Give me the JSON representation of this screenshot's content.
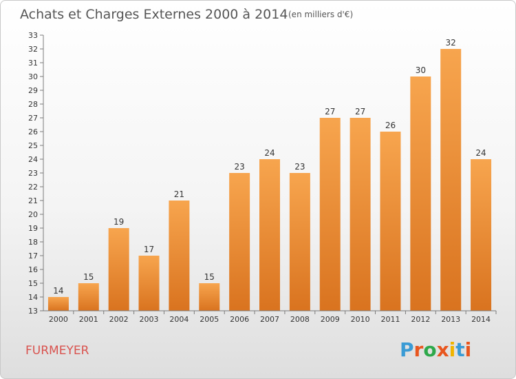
{
  "chart_data": {
    "type": "bar",
    "title": "Achats et Charges Externes 2000 à 2014",
    "subtitle": "(en milliers d'€)",
    "categories": [
      "2000",
      "2001",
      "2002",
      "2003",
      "2004",
      "2005",
      "2006",
      "2007",
      "2008",
      "2009",
      "2010",
      "2011",
      "2012",
      "2013",
      "2014"
    ],
    "values": [
      14,
      15,
      19,
      17,
      21,
      15,
      23,
      24,
      23,
      27,
      27,
      26,
      30,
      32,
      24
    ],
    "ylim": [
      13,
      33
    ],
    "yticks": [
      13,
      14,
      15,
      16,
      17,
      18,
      19,
      20,
      21,
      22,
      23,
      24,
      25,
      26,
      27,
      28,
      29,
      30,
      31,
      32,
      33
    ],
    "xlabel": "",
    "ylabel": "",
    "grid": false,
    "colors": {
      "bar_light": "#f7a54e",
      "bar_dark": "#d9731f",
      "axis": "#7a7a7a"
    }
  },
  "footer": {
    "place": "FURMEYER",
    "logo_text": "Proxiti",
    "logo_colors": [
      "#3a9bd5",
      "#e8561f",
      "#2da84a",
      "#e8561f",
      "#f0b400",
      "#3a9bd5",
      "#e8561f"
    ]
  }
}
